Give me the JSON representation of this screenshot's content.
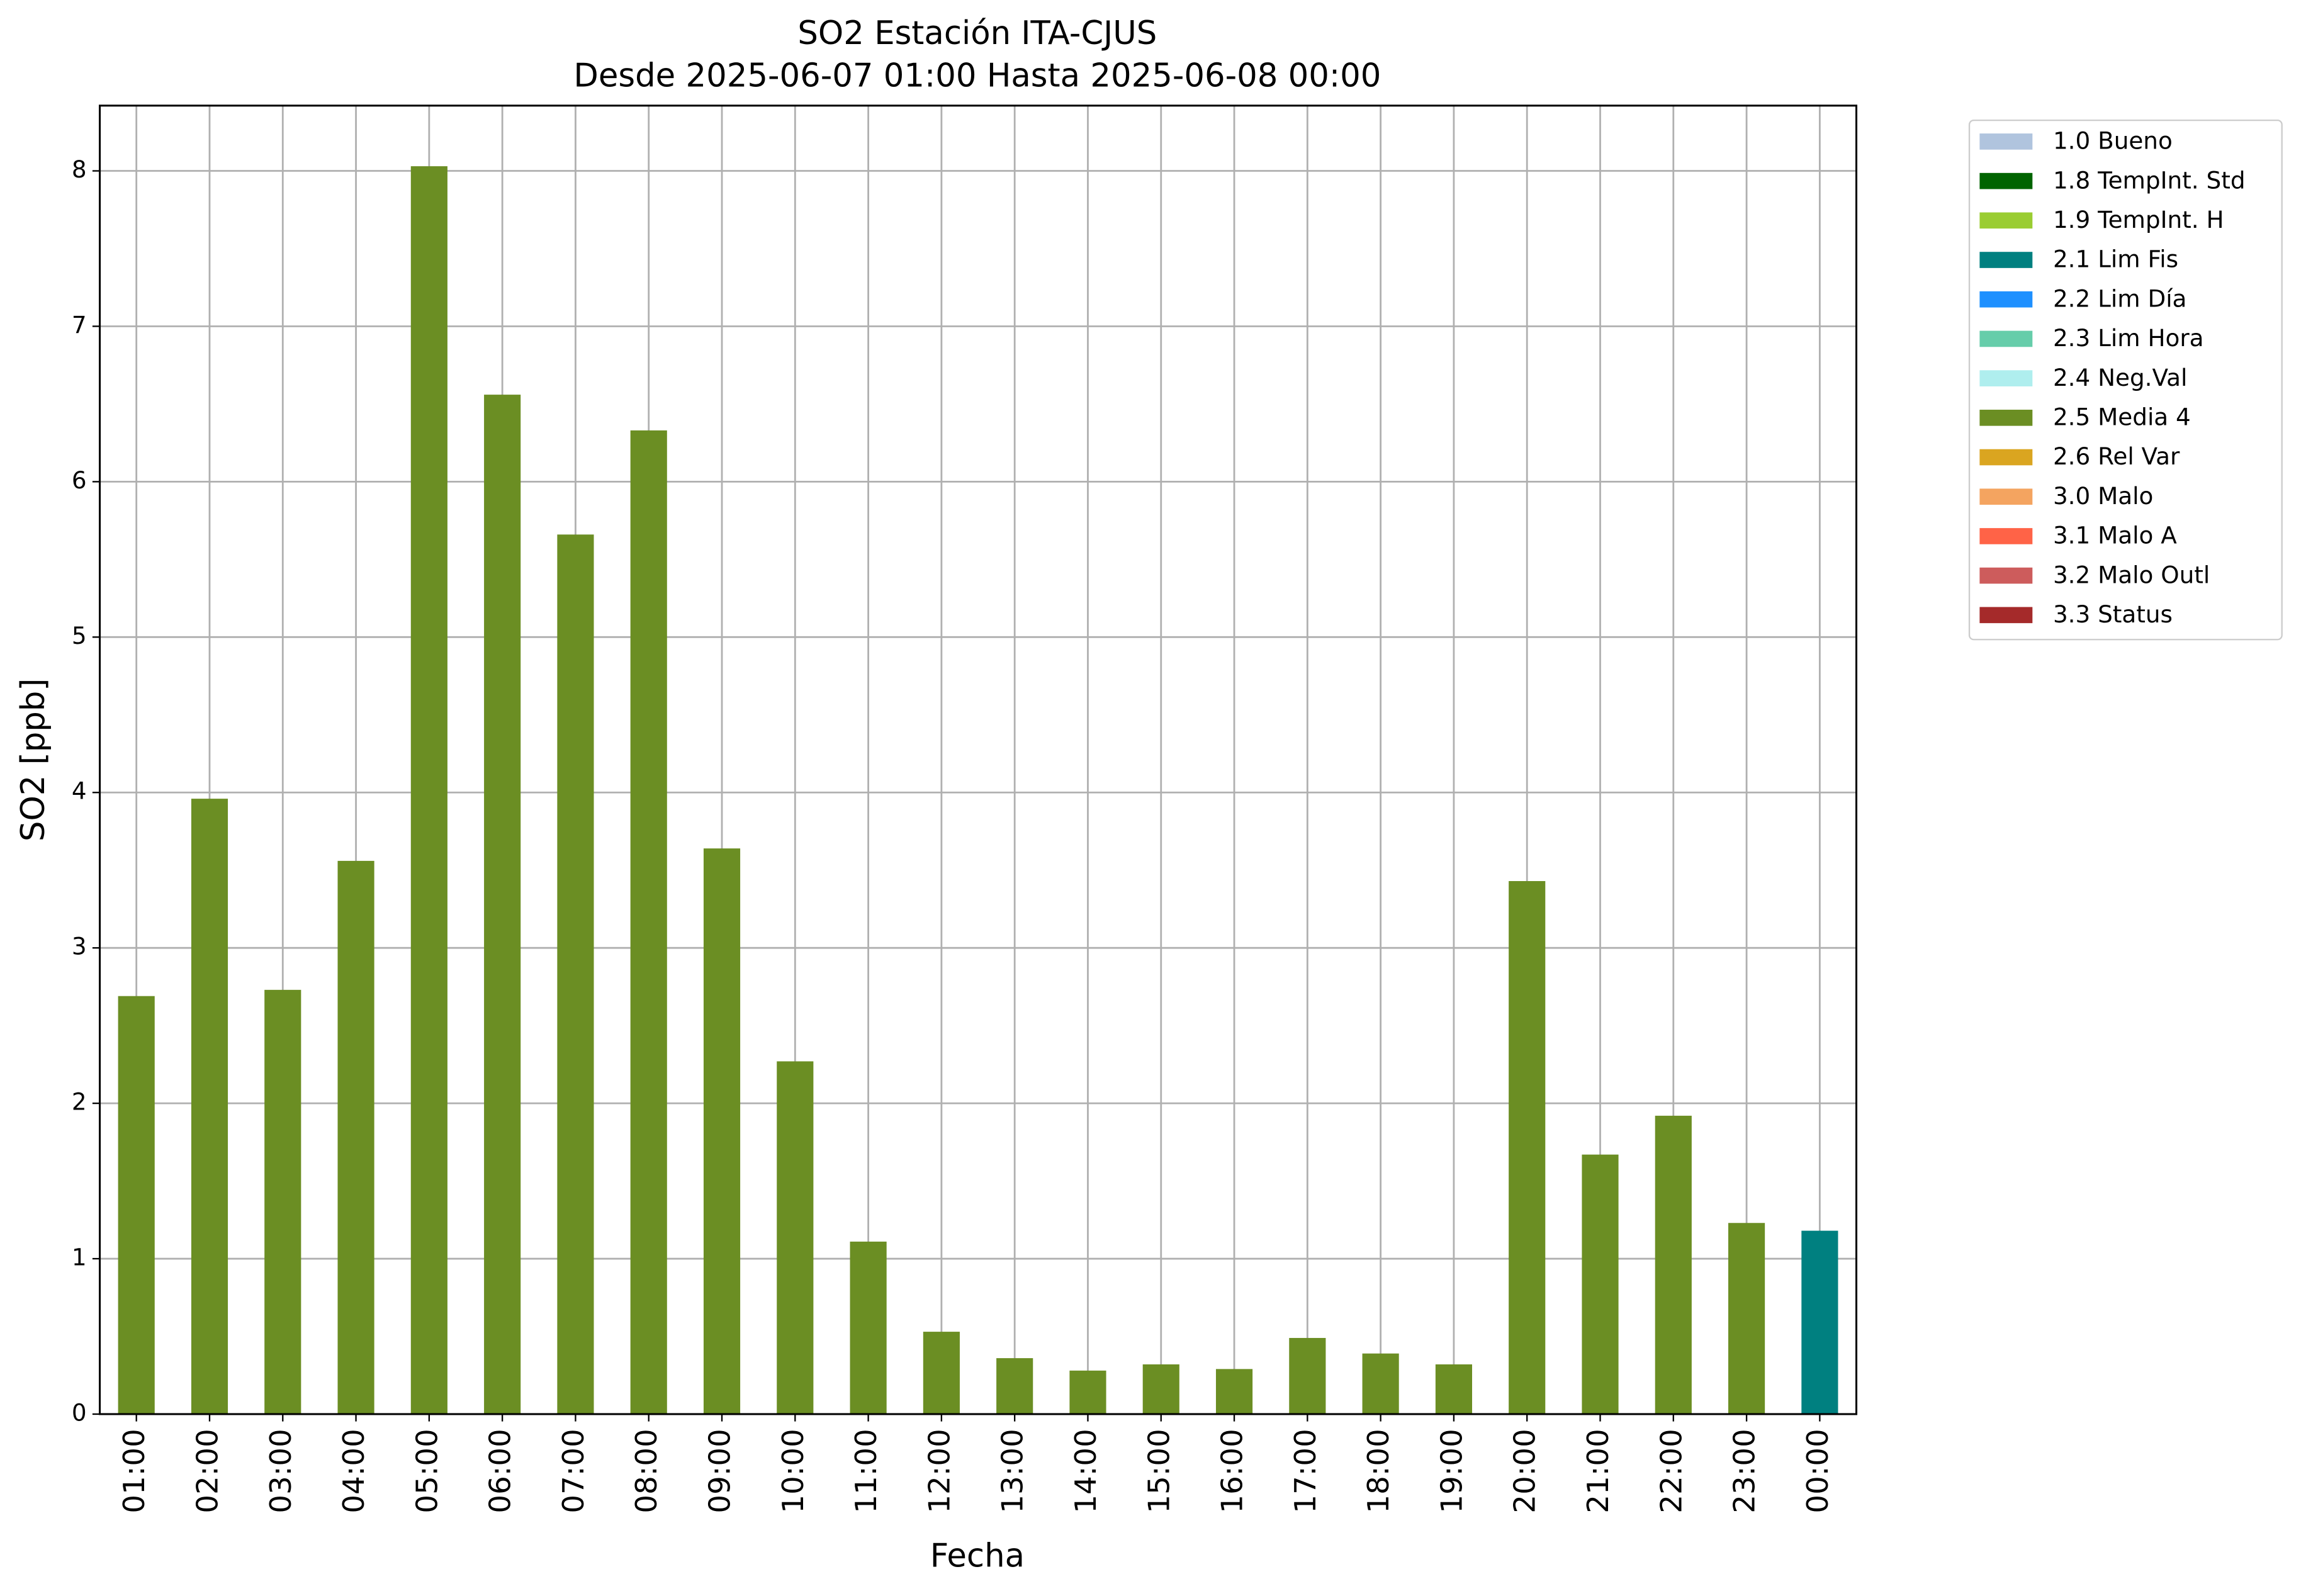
{
  "chart_data": {
    "type": "stacked_bar",
    "title": "SO2 Estación ITA-CJUS",
    "subtitle": "Desde 2025-06-07 01:00 Hasta 2025-06-08 00:00",
    "x_label": "Fecha",
    "y_label": "SO2 [ppb]",
    "categories": [
      "01:00",
      "02:00",
      "03:00",
      "04:00",
      "05:00",
      "06:00",
      "07:00",
      "08:00",
      "09:00",
      "10:00",
      "11:00",
      "12:00",
      "13:00",
      "14:00",
      "15:00",
      "16:00",
      "17:00",
      "18:00",
      "19:00",
      "20:00",
      "21:00",
      "22:00",
      "23:00",
      "00:00"
    ],
    "series": [
      {
        "name": "1.0 Bueno",
        "color": "#b0c4de",
        "values": [
          null,
          null,
          null,
          null,
          null,
          null,
          null,
          null,
          null,
          null,
          null,
          null,
          null,
          null,
          null,
          null,
          null,
          null,
          null,
          null,
          null,
          null,
          null,
          null
        ]
      },
      {
        "name": "1.8 TempInt. Std",
        "color": "#006400",
        "values": [
          null,
          null,
          null,
          null,
          null,
          null,
          null,
          null,
          null,
          null,
          null,
          null,
          null,
          null,
          null,
          null,
          null,
          null,
          null,
          null,
          null,
          null,
          null,
          null
        ]
      },
      {
        "name": "1.9 TempInt. H",
        "color": "#9acd32",
        "values": [
          null,
          null,
          null,
          null,
          null,
          null,
          null,
          null,
          null,
          null,
          null,
          null,
          null,
          null,
          null,
          null,
          null,
          null,
          null,
          null,
          null,
          null,
          null,
          null
        ]
      },
      {
        "name": "2.1 Lim Fis",
        "color": "#008080",
        "values": [
          null,
          null,
          null,
          null,
          null,
          null,
          null,
          null,
          null,
          null,
          null,
          null,
          null,
          null,
          null,
          null,
          null,
          null,
          null,
          null,
          null,
          null,
          null,
          1.18
        ]
      },
      {
        "name": "2.2 Lim Día",
        "color": "#1e90ff",
        "values": [
          null,
          null,
          null,
          null,
          null,
          null,
          null,
          null,
          null,
          null,
          null,
          null,
          null,
          null,
          null,
          null,
          null,
          null,
          null,
          null,
          null,
          null,
          null,
          null
        ]
      },
      {
        "name": "2.3 Lim Hora",
        "color": "#66cdaa",
        "values": [
          null,
          null,
          null,
          null,
          null,
          null,
          null,
          null,
          null,
          null,
          null,
          null,
          null,
          null,
          null,
          null,
          null,
          null,
          null,
          null,
          null,
          null,
          null,
          null
        ]
      },
      {
        "name": "2.4 Neg.Val",
        "color": "#afeeee",
        "values": [
          null,
          null,
          null,
          null,
          null,
          null,
          null,
          null,
          null,
          null,
          null,
          null,
          null,
          null,
          null,
          null,
          null,
          null,
          null,
          null,
          null,
          null,
          null,
          null
        ]
      },
      {
        "name": "2.5 Media 4",
        "color": "#6b8e23",
        "values": [
          2.69,
          3.96,
          2.73,
          3.56,
          8.03,
          6.56,
          5.66,
          6.33,
          3.64,
          2.27,
          1.11,
          0.53,
          0.36,
          0.28,
          0.32,
          0.29,
          0.49,
          0.39,
          0.32,
          3.43,
          1.67,
          1.92,
          1.23,
          null
        ]
      },
      {
        "name": "2.6 Rel Var",
        "color": "#daa520",
        "values": [
          null,
          null,
          null,
          null,
          null,
          null,
          null,
          null,
          null,
          null,
          null,
          null,
          null,
          null,
          null,
          null,
          null,
          null,
          null,
          null,
          null,
          null,
          null,
          null
        ]
      },
      {
        "name": "3.0 Malo",
        "color": "#f4a460",
        "values": [
          null,
          null,
          null,
          null,
          null,
          null,
          null,
          null,
          null,
          null,
          null,
          null,
          null,
          null,
          null,
          null,
          null,
          null,
          null,
          null,
          null,
          null,
          null,
          null
        ]
      },
      {
        "name": "3.1 Malo A",
        "color": "#ff6347",
        "values": [
          null,
          null,
          null,
          null,
          null,
          null,
          null,
          null,
          null,
          null,
          null,
          null,
          null,
          null,
          null,
          null,
          null,
          null,
          null,
          null,
          null,
          null,
          null,
          null
        ]
      },
      {
        "name": "3.2 Malo Outl",
        "color": "#cd5c5c",
        "values": [
          null,
          null,
          null,
          null,
          null,
          null,
          null,
          null,
          null,
          null,
          null,
          null,
          null,
          null,
          null,
          null,
          null,
          null,
          null,
          null,
          null,
          null,
          null,
          null
        ]
      },
      {
        "name": "3.3 Status",
        "color": "#a52a2a",
        "values": [
          null,
          null,
          null,
          null,
          null,
          null,
          null,
          null,
          null,
          null,
          null,
          null,
          null,
          null,
          null,
          null,
          null,
          null,
          null,
          null,
          null,
          null,
          null,
          null
        ]
      }
    ],
    "ylim": [
      0,
      8.42
    ],
    "yticks": [
      0,
      1,
      2,
      3,
      4,
      5,
      6,
      7,
      8
    ],
    "grid": true,
    "legend": "outside-right"
  }
}
